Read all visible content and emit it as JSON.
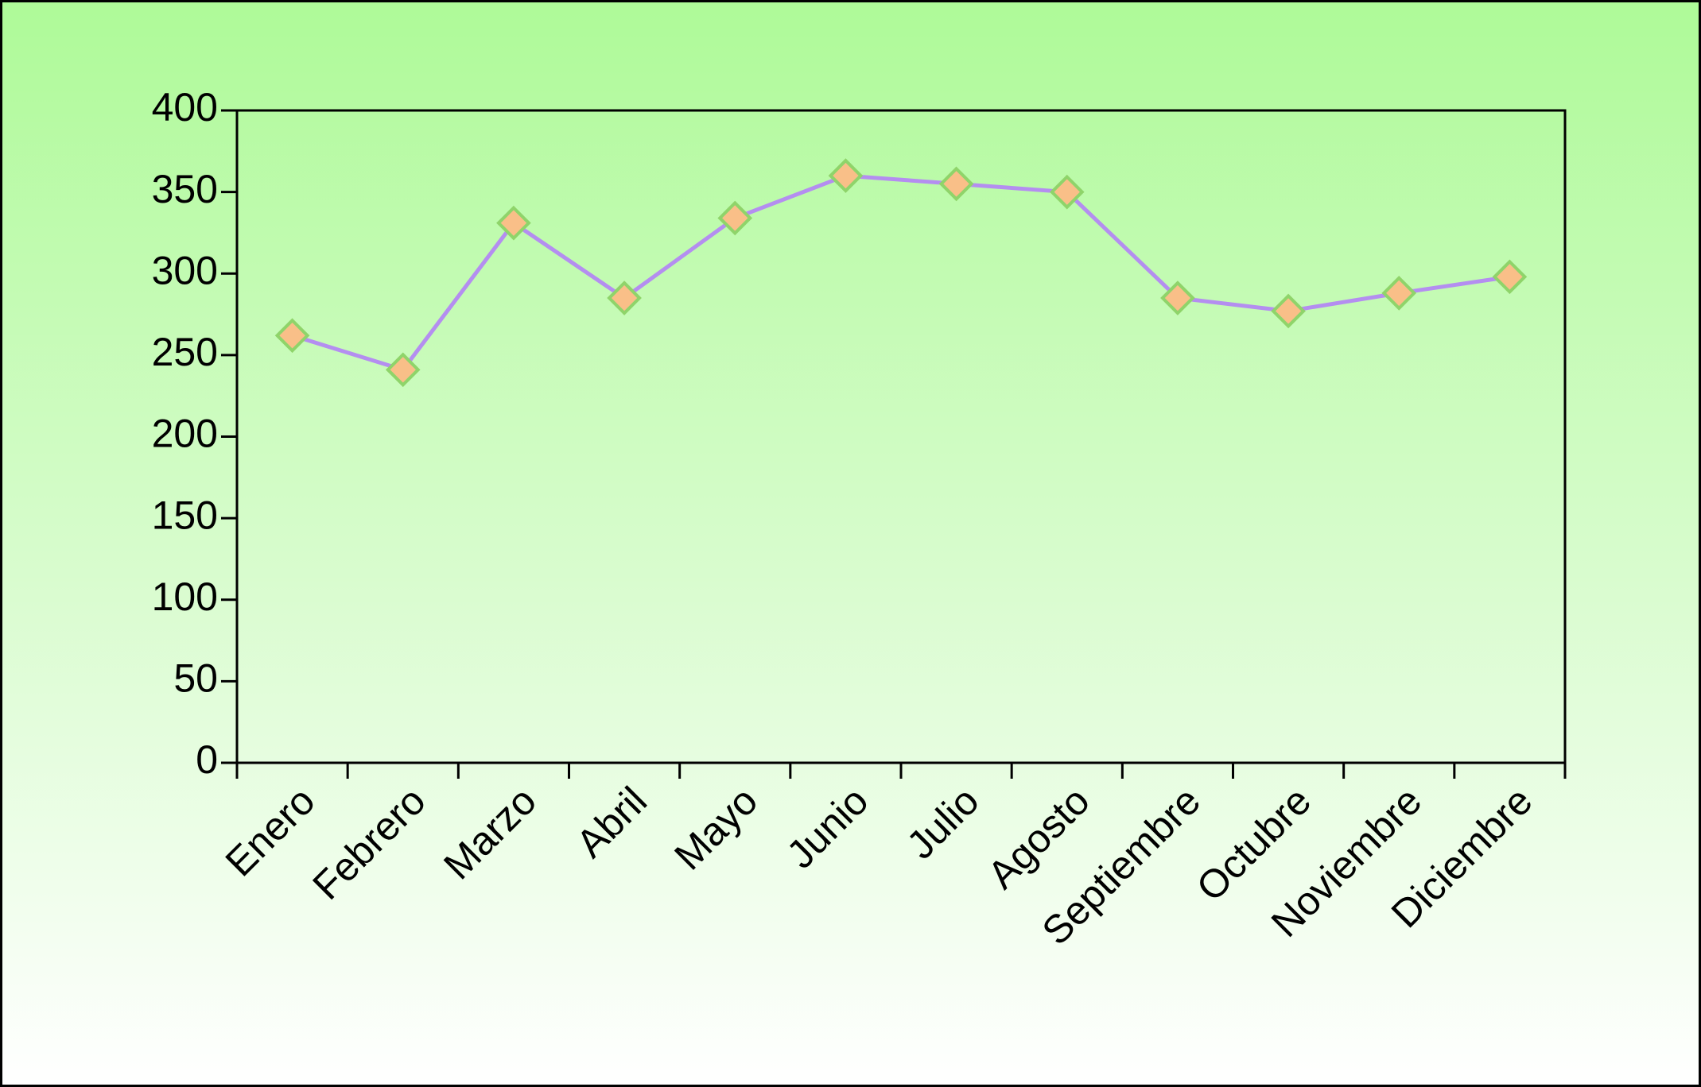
{
  "chart_data": {
    "type": "line",
    "categories": [
      "Enero",
      "Febrero",
      "Marzo",
      "Abril",
      "Mayo",
      "Junio",
      "Julio",
      "Agosto",
      "Septiembre",
      "Octubre",
      "Noviembre",
      "Diciembre"
    ],
    "values": [
      262,
      241,
      331,
      285,
      334,
      360,
      355,
      350,
      285,
      277,
      288,
      298
    ],
    "line_color": "#b48ef0",
    "marker_color": "#f9bf88",
    "ylim": [
      0,
      400
    ],
    "yticks": [
      0,
      50,
      100,
      150,
      200,
      250,
      300,
      350,
      400
    ]
  }
}
